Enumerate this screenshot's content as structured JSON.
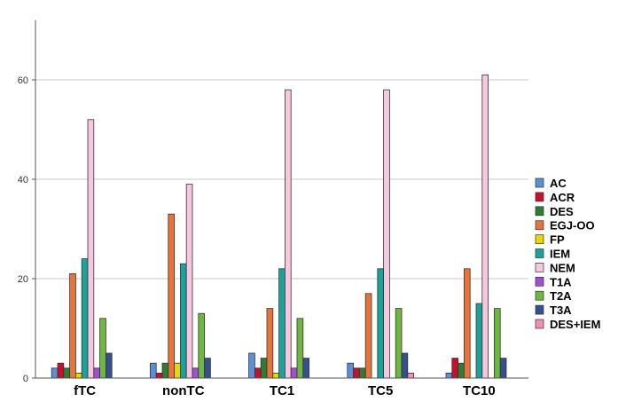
{
  "chart_data": {
    "type": "bar",
    "categories": [
      "fTC",
      "nonTC",
      "TC1",
      "TC5",
      "TC10"
    ],
    "ylim": [
      0,
      72
    ],
    "yticks": [
      0,
      20,
      40,
      60
    ],
    "grid": true,
    "legend_position": "right",
    "series": [
      {
        "name": "AC",
        "color": "#5B8FD6",
        "values": [
          2,
          3,
          5,
          3,
          1
        ]
      },
      {
        "name": "ACR",
        "color": "#C8102E",
        "values": [
          3,
          1,
          2,
          2,
          4
        ]
      },
      {
        "name": "DES",
        "color": "#2E7D32",
        "values": [
          2,
          3,
          4,
          2,
          3
        ]
      },
      {
        "name": "EGJ-OO",
        "color": "#E8743B",
        "values": [
          21,
          33,
          14,
          17,
          22
        ]
      },
      {
        "name": "FP",
        "color": "#E8D800",
        "values": [
          1,
          3,
          1,
          0,
          0
        ]
      },
      {
        "name": "IEM",
        "color": "#1AA39A",
        "values": [
          24,
          23,
          22,
          22,
          15
        ]
      },
      {
        "name": "NEM",
        "color": "#F7C6DF",
        "values": [
          52,
          39,
          58,
          58,
          61
        ]
      },
      {
        "name": "T1A",
        "color": "#A24DD6",
        "values": [
          2,
          2,
          2,
          0,
          0
        ]
      },
      {
        "name": "T2A",
        "color": "#6FB83F",
        "values": [
          12,
          13,
          12,
          14,
          14
        ]
      },
      {
        "name": "T3A",
        "color": "#34508F",
        "values": [
          5,
          4,
          4,
          5,
          4
        ]
      },
      {
        "name": "DES+IEM",
        "color": "#F48FB1",
        "values": [
          0,
          0,
          0,
          1,
          0
        ]
      }
    ]
  }
}
